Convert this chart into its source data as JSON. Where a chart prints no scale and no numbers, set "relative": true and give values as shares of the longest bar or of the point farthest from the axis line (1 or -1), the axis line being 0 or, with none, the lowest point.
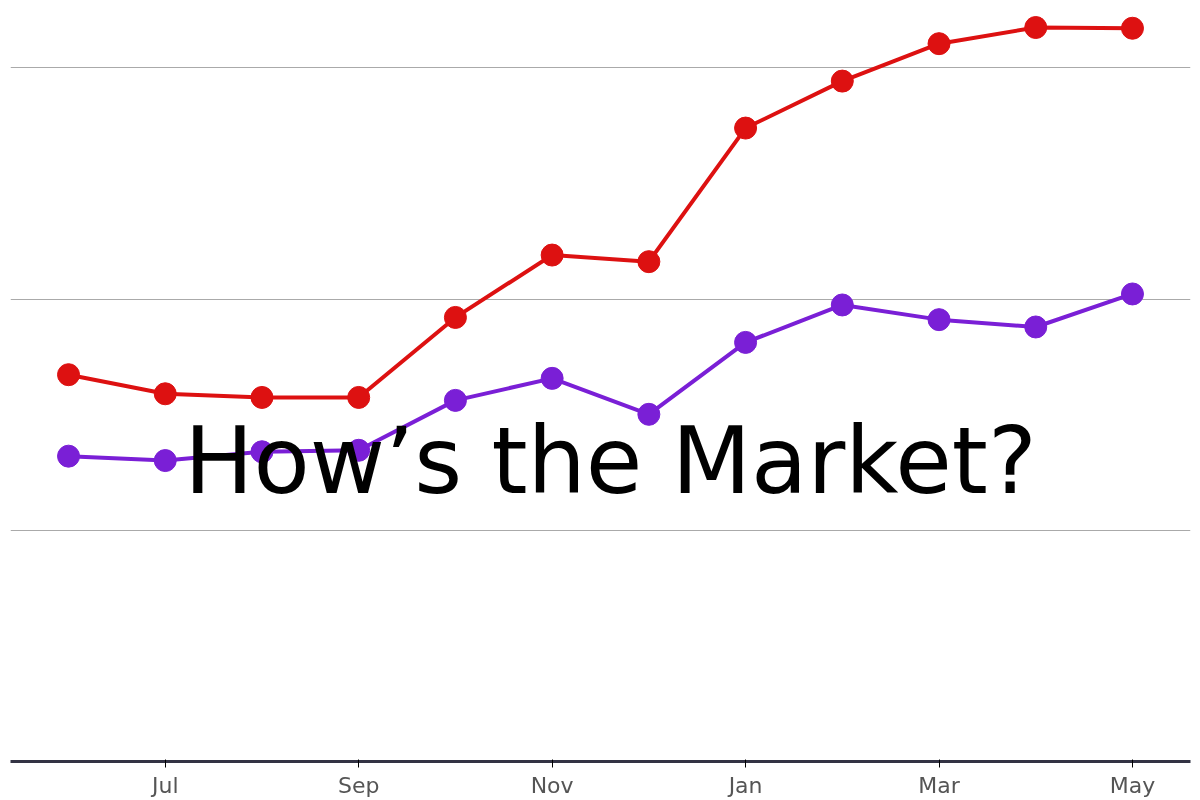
{
  "chart_data": {
    "type": "line",
    "title": "How’s the Market?",
    "relative": true,
    "grid": "y",
    "marker": "circle",
    "line_style": "solid",
    "categories": [
      null,
      "Jul",
      null,
      "Sep",
      null,
      "Nov",
      null,
      "Jan",
      null,
      "Mar",
      null,
      "May"
    ],
    "series": [
      {
        "color": "#dd1111",
        "values": [
          0.527,
          0.501,
          0.496,
          0.496,
          0.605,
          0.69,
          0.681,
          0.863,
          0.927,
          0.978,
          1.0,
          0.999
        ]
      },
      {
        "color": "#7a1fd6",
        "values": [
          0.416,
          0.41,
          0.422,
          0.424,
          0.492,
          0.522,
          0.473,
          0.571,
          0.622,
          0.602,
          0.592,
          0.637
        ]
      }
    ]
  }
}
